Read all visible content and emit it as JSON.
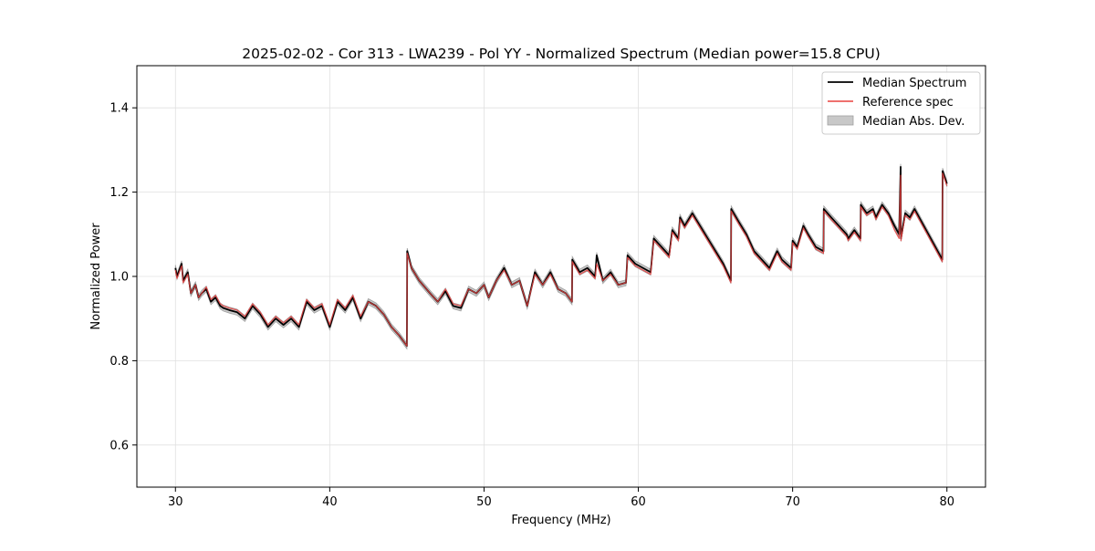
{
  "chart_data": {
    "type": "line",
    "title": "2025-02-02 - Cor 313 - LWA239 - Pol YY - Normalized Spectrum (Median power=15.8 CPU)",
    "xlabel": "Frequency (MHz)",
    "ylabel": "Normalized Power",
    "xlim": [
      27.5,
      82.5
    ],
    "ylim": [
      0.5,
      1.5
    ],
    "xticks": [
      30,
      40,
      50,
      60,
      70,
      80
    ],
    "xtick_labels": [
      "30",
      "40",
      "50",
      "60",
      "70",
      "80"
    ],
    "yticks": [
      0.6,
      0.8,
      1.0,
      1.2,
      1.4
    ],
    "ytick_labels": [
      "0.6",
      "0.8",
      "1.0",
      "1.2",
      "1.4"
    ],
    "grid": true,
    "legend_position": "top-right",
    "legend": [
      "Median Spectrum",
      "Reference spec",
      "Median Abs. Dev."
    ],
    "colors": {
      "median": "#000000",
      "reference": "#e8413f",
      "mad_fill": "#c8c8c8",
      "mad_edge": "#a0a0a0",
      "grid": "#e0e0e0"
    },
    "series": [
      {
        "name": "Median Spectrum",
        "x": [
          30.0,
          30.1,
          30.4,
          30.5,
          30.8,
          31.0,
          31.3,
          31.5,
          31.7,
          32.0,
          32.3,
          32.6,
          32.9,
          33.1,
          33.5,
          34.0,
          34.5,
          35.0,
          35.5,
          36.0,
          36.5,
          37.0,
          37.5,
          38.0,
          38.5,
          39.0,
          39.5,
          40.0,
          40.5,
          41.0,
          41.5,
          42.0,
          42.5,
          43.0,
          43.5,
          44.0,
          44.5,
          45.0,
          45.02,
          45.3,
          45.8,
          46.5,
          47.0,
          47.5,
          48.0,
          48.5,
          49.0,
          49.5,
          50.0,
          50.3,
          50.8,
          51.3,
          51.8,
          52.3,
          52.8,
          53.3,
          53.8,
          54.3,
          54.8,
          55.3,
          55.7,
          55.72,
          56.2,
          56.7,
          57.2,
          57.3,
          57.7,
          58.2,
          58.7,
          59.2,
          59.3,
          59.8,
          60.3,
          60.8,
          61.0,
          61.5,
          62.0,
          62.2,
          62.6,
          62.7,
          63.0,
          63.5,
          64.0,
          64.5,
          65.0,
          65.5,
          66.0,
          66.02,
          66.5,
          67.0,
          67.5,
          68.0,
          68.5,
          69.0,
          69.3,
          69.6,
          69.9,
          70.0,
          70.3,
          70.7,
          71.0,
          71.5,
          72.0,
          72.02,
          72.5,
          73.0,
          73.5,
          73.6,
          74.0,
          74.4,
          74.42,
          74.8,
          75.2,
          75.4,
          75.8,
          76.2,
          76.6,
          76.9,
          77.0,
          77.02,
          77.3,
          77.6,
          77.9,
          78.2,
          78.5,
          78.8,
          79.1,
          79.4,
          79.7,
          79.72,
          80.0
        ],
        "y": [
          1.02,
          1.0,
          1.03,
          0.99,
          1.01,
          0.96,
          0.98,
          0.95,
          0.96,
          0.97,
          0.94,
          0.95,
          0.93,
          0.925,
          0.92,
          0.915,
          0.9,
          0.93,
          0.91,
          0.88,
          0.9,
          0.885,
          0.9,
          0.88,
          0.94,
          0.92,
          0.93,
          0.88,
          0.94,
          0.92,
          0.95,
          0.9,
          0.94,
          0.93,
          0.91,
          0.88,
          0.86,
          0.835,
          1.06,
          1.02,
          0.99,
          0.96,
          0.94,
          0.965,
          0.93,
          0.925,
          0.97,
          0.96,
          0.98,
          0.95,
          0.99,
          1.02,
          0.98,
          0.99,
          0.93,
          1.01,
          0.98,
          1.01,
          0.97,
          0.96,
          0.94,
          1.04,
          1.01,
          1.02,
          1.0,
          1.05,
          0.99,
          1.01,
          0.98,
          0.985,
          1.05,
          1.03,
          1.02,
          1.01,
          1.09,
          1.07,
          1.05,
          1.11,
          1.09,
          1.14,
          1.12,
          1.15,
          1.12,
          1.09,
          1.06,
          1.03,
          0.99,
          1.16,
          1.13,
          1.1,
          1.06,
          1.04,
          1.02,
          1.06,
          1.04,
          1.03,
          1.02,
          1.085,
          1.07,
          1.12,
          1.1,
          1.07,
          1.06,
          1.16,
          1.14,
          1.12,
          1.1,
          1.09,
          1.11,
          1.09,
          1.17,
          1.15,
          1.16,
          1.14,
          1.17,
          1.15,
          1.12,
          1.1,
          1.26,
          1.09,
          1.15,
          1.14,
          1.16,
          1.14,
          1.12,
          1.1,
          1.08,
          1.06,
          1.04,
          1.25,
          1.22
        ],
        "mad": 0.007
      },
      {
        "name": "Reference spec",
        "x": [
          30.0,
          30.1,
          30.4,
          30.5,
          30.8,
          31.0,
          31.3,
          31.5,
          31.7,
          32.0,
          32.3,
          32.6,
          32.9,
          33.1,
          33.5,
          34.0,
          34.5,
          35.0,
          35.5,
          36.0,
          36.5,
          37.0,
          37.5,
          38.0,
          38.5,
          39.0,
          39.5,
          40.0,
          40.5,
          41.0,
          41.5,
          42.0,
          42.5,
          43.0,
          43.5,
          44.0,
          44.5,
          45.0,
          45.02,
          45.3,
          45.8,
          46.5,
          47.0,
          47.5,
          48.0,
          48.5,
          49.0,
          49.5,
          50.0,
          50.3,
          50.8,
          51.3,
          51.8,
          52.3,
          52.8,
          53.3,
          53.8,
          54.3,
          54.8,
          55.3,
          55.7,
          55.72,
          56.2,
          56.7,
          57.2,
          57.3,
          57.7,
          58.2,
          58.7,
          59.2,
          59.3,
          59.8,
          60.3,
          60.8,
          61.0,
          61.5,
          62.0,
          62.2,
          62.6,
          62.7,
          63.0,
          63.5,
          64.0,
          64.5,
          65.0,
          65.5,
          66.0,
          66.02,
          66.5,
          67.0,
          67.5,
          68.0,
          68.5,
          69.0,
          69.3,
          69.6,
          69.9,
          70.0,
          70.3,
          70.7,
          71.0,
          71.5,
          72.0,
          72.02,
          72.5,
          73.0,
          73.5,
          73.6,
          74.0,
          74.4,
          74.42,
          74.8,
          75.2,
          75.4,
          75.8,
          76.2,
          76.6,
          76.9,
          77.0,
          77.02,
          77.3,
          77.6,
          77.9,
          78.2,
          78.5,
          78.8,
          79.1,
          79.4,
          79.7,
          79.72,
          80.0
        ],
        "y": [
          1.015,
          0.995,
          1.025,
          0.985,
          1.005,
          0.96,
          0.98,
          0.95,
          0.96,
          0.975,
          0.945,
          0.955,
          0.935,
          0.93,
          0.925,
          0.92,
          0.905,
          0.935,
          0.915,
          0.885,
          0.905,
          0.89,
          0.905,
          0.885,
          0.945,
          0.925,
          0.935,
          0.885,
          0.945,
          0.925,
          0.955,
          0.905,
          0.94,
          0.93,
          0.91,
          0.88,
          0.86,
          0.835,
          1.055,
          1.02,
          0.99,
          0.96,
          0.94,
          0.97,
          0.935,
          0.93,
          0.97,
          0.96,
          0.98,
          0.95,
          0.99,
          1.015,
          0.98,
          0.99,
          0.93,
          1.005,
          0.98,
          1.005,
          0.97,
          0.96,
          0.94,
          1.035,
          1.005,
          1.015,
          0.995,
          1.03,
          0.99,
          1.005,
          0.98,
          0.985,
          1.045,
          1.025,
          1.015,
          1.005,
          1.085,
          1.065,
          1.045,
          1.105,
          1.085,
          1.135,
          1.115,
          1.145,
          1.115,
          1.085,
          1.055,
          1.025,
          0.985,
          1.155,
          1.125,
          1.095,
          1.055,
          1.035,
          1.015,
          1.055,
          1.035,
          1.025,
          1.015,
          1.08,
          1.065,
          1.115,
          1.095,
          1.065,
          1.055,
          1.155,
          1.135,
          1.115,
          1.095,
          1.085,
          1.105,
          1.085,
          1.165,
          1.145,
          1.155,
          1.135,
          1.165,
          1.145,
          1.11,
          1.09,
          1.24,
          1.085,
          1.145,
          1.135,
          1.155,
          1.135,
          1.115,
          1.095,
          1.075,
          1.055,
          1.035,
          1.245,
          1.215
        ]
      }
    ]
  }
}
